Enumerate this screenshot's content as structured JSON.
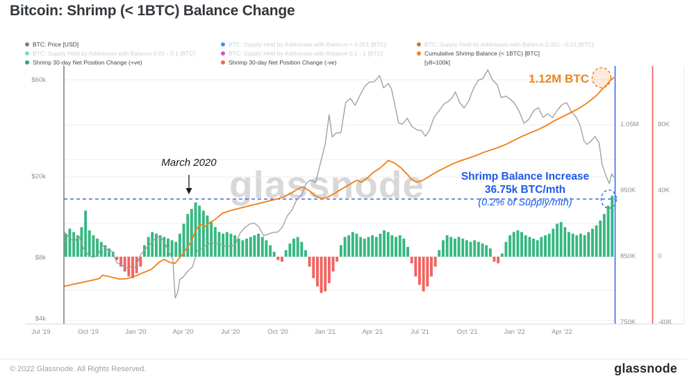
{
  "title": "Bitcoin: Shrimp (< 1BTC) Balance Change",
  "legend": {
    "columns": [
      {
        "items": [
          {
            "label": "BTC: Price [USD]",
            "color": "#7f7f7f",
            "active": true
          },
          {
            "label": "BTC: Supply Held by Addresses with Balance 0.01 - 0.1 [BTC]",
            "color": "#7fd9c0",
            "active": false
          },
          {
            "label": "Shrimp 30-day Net Position Change (+ve)",
            "color": "#1fae72",
            "active": true
          }
        ]
      },
      {
        "items": [
          {
            "label": "BTC: Supply Held by Addresses with Balance < 0.001 [BTC]",
            "color": "#4a90d9",
            "active": false
          },
          {
            "label": "BTC: Supply Held by Addresses with Balance 0.1 - 1 [BTC]",
            "color": "#c45ad6",
            "active": false
          },
          {
            "label": "Shrimp 30-day Net Position Change (-ve)",
            "color": "#f4645c",
            "active": true
          }
        ]
      },
      {
        "items": [
          {
            "label": "BTC: Supply Held by Addresses with Balance 0.001 - 0.01 [BTC]",
            "color": "#cf7a2c",
            "active": false
          },
          {
            "label": "Cumulative Shrimp Balance (< 1BTC) [BTC]",
            "color": "#f58220",
            "active": true
          },
          {
            "label": "[y8=100k]",
            "color": null,
            "active": true
          }
        ]
      }
    ]
  },
  "annotations": {
    "march_2020": "March 2020",
    "peak_balance": "1.12M BTC",
    "increase_line1": "Shrimp Balance Increase",
    "increase_line2": "36.75k BTC/mth",
    "increase_line3": "(0.2% of Supply/mth)",
    "watermark": "glassnode"
  },
  "footer": {
    "copyright": "© 2022 Glassnode. All Rights Reserved.",
    "logo": "glassnode"
  },
  "chart_data": {
    "type": "mixed",
    "title": "Bitcoin: Shrimp (< 1BTC) Balance Change",
    "x_axis": {
      "start": "Jul 2019",
      "end": "Jul 2022",
      "tick_labels": [
        "Jul '19",
        "Oct '19",
        "Jan '20",
        "Apr '20",
        "Jul '20",
        "Oct '20",
        "Jan '21",
        "Apr '21",
        "Jul '21",
        "Oct '21",
        "Jan '22",
        "Apr '22"
      ]
    },
    "y_left": {
      "label": "BTC: Price [USD]",
      "scale": "log",
      "tick_labels": [
        "$60k",
        "$20k",
        "$8k",
        "$4k"
      ],
      "tick_values_usd": [
        60000,
        20000,
        8000,
        4000
      ]
    },
    "y_right_balance": {
      "label": "Cumulative Shrimp Balance (< 1BTC) [BTC]",
      "scale": "linear",
      "tick_labels": [
        "1.05M",
        "950K",
        "850K",
        "750K"
      ],
      "tick_values_kbtc": [
        1050,
        950,
        850,
        750
      ],
      "axis_color": "#2f6fed"
    },
    "y_right_net": {
      "label": "Shrimp 30-day Net Position Change [BTC]",
      "scale": "linear",
      "tick_labels": [
        "80K",
        "40K",
        "0",
        "-40K"
      ],
      "tick_values_kbtc": [
        80,
        40,
        0,
        -40
      ],
      "axis_color": "#ee5a52"
    },
    "reference_line": {
      "axis": "y_right_net",
      "value_kbtc": 35,
      "style": "dashed",
      "color": "#3a6ed8",
      "meaning": "recent shrimp balance increase rate ~36.75k BTC/mth"
    },
    "series": [
      {
        "name": "BTC: Price [USD]",
        "type": "line",
        "color": "#9b9b9b",
        "axis": "y_left",
        "points_month_usd": [
          [
            1.45,
            10800
          ],
          [
            1.8,
            10100
          ],
          [
            2.1,
            9600
          ],
          [
            2.4,
            10300
          ],
          [
            2.7,
            8900
          ],
          [
            3.0,
            8300
          ],
          [
            3.3,
            8050
          ],
          [
            3.6,
            8300
          ],
          [
            3.9,
            9250
          ],
          [
            4.2,
            8800
          ],
          [
            4.5,
            8650
          ],
          [
            4.8,
            7600
          ],
          [
            5.1,
            7400
          ],
          [
            5.4,
            7150
          ],
          [
            5.7,
            7250
          ],
          [
            6.0,
            7200
          ],
          [
            6.3,
            8300
          ],
          [
            6.6,
            8850
          ],
          [
            6.9,
            9350
          ],
          [
            7.2,
            9900
          ],
          [
            7.5,
            10250
          ],
          [
            7.8,
            9650
          ],
          [
            8.1,
            8550
          ],
          [
            8.35,
            7900
          ],
          [
            8.5,
            5100
          ],
          [
            8.65,
            5400
          ],
          [
            8.8,
            6300
          ],
          [
            9.0,
            6450
          ],
          [
            9.3,
            6900
          ],
          [
            9.6,
            7250
          ],
          [
            9.9,
            8700
          ],
          [
            10.2,
            8900
          ],
          [
            10.5,
            9300
          ],
          [
            10.8,
            9550
          ],
          [
            11.1,
            9450
          ],
          [
            11.4,
            9350
          ],
          [
            11.7,
            9150
          ],
          [
            12.0,
            9150
          ],
          [
            12.3,
            9250
          ],
          [
            12.6,
            10600
          ],
          [
            12.9,
            11300
          ],
          [
            13.2,
            11750
          ],
          [
            13.5,
            11900
          ],
          [
            13.8,
            11400
          ],
          [
            14.1,
            10300
          ],
          [
            14.4,
            10500
          ],
          [
            14.7,
            10700
          ],
          [
            15.0,
            10750
          ],
          [
            15.3,
            11400
          ],
          [
            15.6,
            12900
          ],
          [
            15.9,
            13800
          ],
          [
            16.2,
            15500
          ],
          [
            16.5,
            16300
          ],
          [
            16.8,
            18700
          ],
          [
            17.1,
            19400
          ],
          [
            17.4,
            18800
          ],
          [
            17.7,
            23500
          ],
          [
            18.0,
            29000
          ],
          [
            18.25,
            40500
          ],
          [
            18.45,
            31500
          ],
          [
            18.7,
            33000
          ],
          [
            19.0,
            33100
          ],
          [
            19.3,
            46500
          ],
          [
            19.6,
            48800
          ],
          [
            19.9,
            45100
          ],
          [
            20.2,
            50500
          ],
          [
            20.5,
            55800
          ],
          [
            20.8,
            58800
          ],
          [
            21.1,
            58900
          ],
          [
            21.45,
            63200
          ],
          [
            21.7,
            55000
          ],
          [
            22.0,
            57800
          ],
          [
            22.2,
            54500
          ],
          [
            22.45,
            44000
          ],
          [
            22.65,
            37000
          ],
          [
            22.9,
            36500
          ],
          [
            23.2,
            39000
          ],
          [
            23.5,
            35500
          ],
          [
            23.8,
            34200
          ],
          [
            24.1,
            33900
          ],
          [
            24.35,
            31800
          ],
          [
            24.6,
            33900
          ],
          [
            24.9,
            39500
          ],
          [
            25.2,
            42200
          ],
          [
            25.5,
            45600
          ],
          [
            25.8,
            47200
          ],
          [
            26.05,
            49300
          ],
          [
            26.25,
            52600
          ],
          [
            26.5,
            46800
          ],
          [
            26.8,
            43800
          ],
          [
            27.1,
            47500
          ],
          [
            27.4,
            54700
          ],
          [
            27.7,
            60000
          ],
          [
            28.0,
            61300
          ],
          [
            28.3,
            67500
          ],
          [
            28.6,
            60100
          ],
          [
            28.9,
            57000
          ],
          [
            29.15,
            49300
          ],
          [
            29.45,
            50100
          ],
          [
            29.7,
            48600
          ],
          [
            30.0,
            46200
          ],
          [
            30.3,
            42000
          ],
          [
            30.6,
            36800
          ],
          [
            30.9,
            38500
          ],
          [
            31.2,
            42400
          ],
          [
            31.5,
            44000
          ],
          [
            31.8,
            39400
          ],
          [
            32.1,
            41000
          ],
          [
            32.4,
            39300
          ],
          [
            32.7,
            42600
          ],
          [
            33.0,
            45500
          ],
          [
            33.3,
            46500
          ],
          [
            33.6,
            42000
          ],
          [
            33.9,
            39500
          ],
          [
            34.15,
            36000
          ],
          [
            34.4,
            30100
          ],
          [
            34.6,
            29000
          ],
          [
            34.85,
            30200
          ],
          [
            35.1,
            31700
          ],
          [
            35.35,
            29500
          ],
          [
            35.55,
            23000
          ],
          [
            35.8,
            20200
          ],
          [
            36.0,
            18600
          ],
          [
            36.15,
            20800
          ],
          [
            36.3,
            19900
          ]
        ]
      },
      {
        "name": "Cumulative Shrimp Balance (< 1BTC) [BTC]",
        "type": "line",
        "color": "#f2811d",
        "axis": "y_right_balance",
        "end_value_kbtc": 1120,
        "points_month_kbtc": [
          [
            1.45,
            805
          ],
          [
            2,
            808
          ],
          [
            3,
            813
          ],
          [
            3.7,
            817
          ],
          [
            3.9,
            822
          ],
          [
            4.3,
            820
          ],
          [
            5,
            816
          ],
          [
            5.5,
            817
          ],
          [
            6,
            821
          ],
          [
            6.5,
            826
          ],
          [
            7,
            831
          ],
          [
            7.5,
            842
          ],
          [
            7.8,
            846
          ],
          [
            8.2,
            841
          ],
          [
            8.5,
            840
          ],
          [
            9,
            855
          ],
          [
            9.5,
            872
          ],
          [
            9.8,
            890
          ],
          [
            10.1,
            899
          ],
          [
            10.4,
            896
          ],
          [
            10.7,
            902
          ],
          [
            11,
            906
          ],
          [
            11.5,
            916
          ],
          [
            12,
            920
          ],
          [
            12.8,
            925
          ],
          [
            13.5,
            929
          ],
          [
            14.2,
            933
          ],
          [
            15,
            938
          ],
          [
            15.4,
            941
          ],
          [
            15.8,
            946
          ],
          [
            16.3,
            953
          ],
          [
            16.6,
            956
          ],
          [
            17,
            950
          ],
          [
            17.4,
            942
          ],
          [
            17.8,
            938
          ],
          [
            18.2,
            941
          ],
          [
            18.6,
            946
          ],
          [
            19,
            952
          ],
          [
            19.5,
            959
          ],
          [
            20,
            966
          ],
          [
            20.3,
            963
          ],
          [
            20.7,
            970
          ],
          [
            21,
            977
          ],
          [
            21.5,
            985
          ],
          [
            22,
            996
          ],
          [
            22.4,
            992
          ],
          [
            22.8,
            985
          ],
          [
            23.2,
            975
          ],
          [
            23.5,
            967
          ],
          [
            23.8,
            963
          ],
          [
            24.2,
            966
          ],
          [
            24.6,
            972
          ],
          [
            25,
            978
          ],
          [
            25.5,
            984
          ],
          [
            26,
            990
          ],
          [
            26.5,
            995
          ],
          [
            27,
            999
          ],
          [
            27.5,
            1003
          ],
          [
            28,
            1008
          ],
          [
            28.5,
            1012
          ],
          [
            29,
            1016
          ],
          [
            29.5,
            1021
          ],
          [
            30,
            1027
          ],
          [
            30.5,
            1033
          ],
          [
            31,
            1038
          ],
          [
            31.5,
            1043
          ],
          [
            32,
            1049
          ],
          [
            32.5,
            1056
          ],
          [
            33,
            1062
          ],
          [
            33.5,
            1068
          ],
          [
            34,
            1074
          ],
          [
            34.4,
            1080
          ],
          [
            34.8,
            1087
          ],
          [
            35.2,
            1095
          ],
          [
            35.5,
            1103
          ],
          [
            35.8,
            1110
          ],
          [
            36.05,
            1117
          ],
          [
            36.3,
            1122
          ]
        ]
      },
      {
        "name": "Shrimp 30-day Net Position Change",
        "type": "bar",
        "color_positive": "#35b881",
        "color_negative": "#f3625f",
        "axis": "y_right_net",
        "start_month": 1.45,
        "end_month": 36.3,
        "values_kbtc": [
          14,
          17,
          15,
          13,
          18,
          28,
          16,
          13,
          11,
          9,
          7,
          5,
          3,
          -2,
          -6,
          -9,
          -12,
          -13,
          -10,
          -6,
          7,
          12,
          15,
          14,
          13,
          12,
          11,
          10,
          9,
          14,
          20,
          26,
          29,
          33,
          31,
          28,
          25,
          21,
          18,
          15,
          14,
          15,
          14,
          13,
          11,
          10,
          11,
          12,
          13,
          14,
          12,
          10,
          7,
          3,
          -2,
          -3,
          4,
          8,
          11,
          12,
          9,
          4,
          -6,
          -13,
          -18,
          -22,
          -21,
          -16,
          -9,
          -3,
          7,
          12,
          13,
          15,
          14,
          12,
          11,
          12,
          13,
          12,
          14,
          16,
          15,
          13,
          12,
          13,
          11,
          6,
          -4,
          -12,
          -17,
          -21,
          -18,
          -12,
          -6,
          4,
          10,
          13,
          12,
          11,
          12,
          11,
          10,
          9,
          10,
          9,
          8,
          7,
          5,
          -3,
          -4,
          2,
          9,
          13,
          15,
          16,
          15,
          13,
          12,
          11,
          10,
          12,
          13,
          14,
          17,
          20,
          21,
          18,
          15,
          14,
          13,
          14,
          13,
          15,
          17,
          19,
          22,
          26,
          31,
          37
        ]
      }
    ]
  }
}
